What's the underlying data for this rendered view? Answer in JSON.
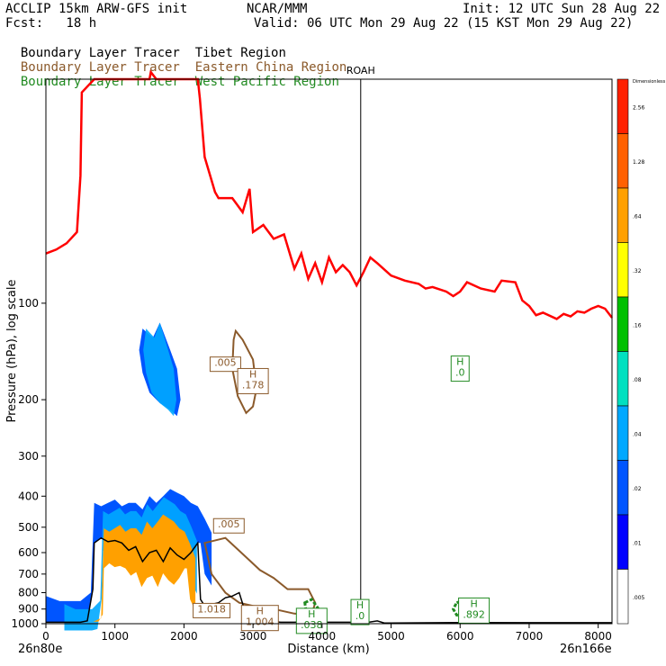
{
  "header": {
    "line1_left": "ACCLIP 15km ARW-GFS init",
    "line1_mid": "NCAR/MMM",
    "line1_right": "Init: 12 UTC Sun 28 Aug 22",
    "line2_left": "Fcst:   18 h",
    "line2_right": "Valid: 06 UTC Mon 29 Aug 22 (15 KST Mon 29 Aug 22)",
    "legend": [
      {
        "prefix": "Boundary Layer Tracer",
        "region": "Tibet Region",
        "color": "#000000"
      },
      {
        "prefix": "Boundary Layer Tracer",
        "region": "Eastern China Region",
        "color": "#8B5A2B"
      },
      {
        "prefix": "Boundary Layer Tracer",
        "region": "West Pacific Region",
        "color": "#228B22"
      }
    ]
  },
  "chart_data": {
    "type": "cross-section",
    "ylabel": "Pressure (hPa), log scale",
    "xlabel": "Distance (km)",
    "xlim": [
      0,
      8200
    ],
    "ylim": [
      1000,
      20
    ],
    "log_y": true,
    "xticks": [
      0,
      1000,
      2000,
      3000,
      4000,
      5000,
      6000,
      7000,
      8000
    ],
    "yticks": [
      100,
      200,
      300,
      400,
      500,
      600,
      700,
      800,
      900,
      1000
    ],
    "x_start_label": "26n80e",
    "x_end_label": "26n166e",
    "marker": {
      "label": "ROAH",
      "x": 4560
    },
    "colorbar": {
      "top_label": "Dimensionless",
      "levels": [
        ".005",
        ".01",
        ".02",
        ".04",
        ".08",
        ".16",
        ".32",
        ".64",
        "1.28",
        "2.56"
      ],
      "colors": [
        "#ffffff",
        "#0000ff",
        "#0055ff",
        "#00a8ff",
        "#00e0c0",
        "#00c000",
        "#ffff00",
        "#ffa000",
        "#ff6000",
        "#ff2000"
      ]
    },
    "tropopause": {
      "color": "#ff0000",
      "x": [
        0,
        150,
        300,
        450,
        500,
        520,
        700,
        1000,
        1300,
        1500,
        1520,
        1600,
        1800,
        2200,
        2230,
        2300,
        2450,
        2500,
        2700,
        2850,
        2950,
        3000,
        3150,
        3300,
        3450,
        3550,
        3600,
        3700,
        3800,
        3900,
        4000,
        4100,
        4200,
        4300,
        4400,
        4500,
        4600,
        4700,
        4800,
        5000,
        5200,
        5400,
        5500,
        5600,
        5800,
        5900,
        6000,
        6100,
        6300,
        6500,
        6600,
        6800,
        6900,
        7000,
        7100,
        7200,
        7400,
        7500,
        7600,
        7700,
        7800,
        7900,
        8000,
        8100,
        8200
      ],
      "p": [
        70,
        68,
        65,
        60,
        40,
        22,
        20,
        20,
        20,
        20,
        19,
        20,
        20,
        20,
        23,
        35,
        45,
        47,
        47,
        52,
        44,
        60,
        57,
        63,
        61,
        72,
        78,
        70,
        84,
        75,
        86,
        72,
        80,
        76,
        80,
        88,
        80,
        72,
        75,
        82,
        85,
        87,
        90,
        89,
        92,
        95,
        92,
        86,
        90,
        92,
        85,
        86,
        98,
        102,
        109,
        107,
        112,
        108,
        110,
        106,
        107,
        104,
        102,
        104,
        111
      ]
    },
    "terrain": {
      "color": "#000000",
      "x": [
        0,
        300,
        500,
        600,
        680,
        700,
        800,
        900,
        1000,
        1100,
        1200,
        1300,
        1400,
        1500,
        1600,
        1700,
        1800,
        1900,
        2000,
        2100,
        2200,
        2240,
        2300,
        2400,
        2500,
        2600,
        2700,
        2800,
        2900,
        3000,
        3200,
        3400,
        3600,
        3800,
        4000,
        4200,
        4400,
        4600,
        4800,
        4900,
        5000,
        6000,
        7000,
        8000,
        8200
      ],
      "p": [
        990,
        990,
        990,
        980,
        780,
        560,
        540,
        555,
        550,
        560,
        590,
        575,
        640,
        600,
        590,
        640,
        580,
        610,
        630,
        600,
        560,
        840,
        880,
        870,
        860,
        830,
        820,
        800,
        940,
        960,
        980,
        990,
        990,
        985,
        990,
        990,
        990,
        995,
        980,
        995,
        995,
        992,
        993,
        993,
        993
      ]
    },
    "tibet_shading": [
      {
        "label": "boundary-layer plume",
        "x": [
          0,
          200,
          500,
          650,
          700,
          800,
          900,
          1000,
          1100,
          1200,
          1300,
          1400,
          1500,
          1600,
          1700,
          1800,
          1900,
          2000,
          2100,
          2200,
          2300,
          2400,
          2400,
          2300,
          2240,
          2200,
          2100,
          2000,
          1900,
          1800,
          1700,
          1600,
          1500,
          1400,
          1300,
          1200,
          1100,
          1000,
          900,
          800,
          700,
          680,
          600,
          500,
          300,
          0
        ],
        "p": [
          820,
          850,
          850,
          800,
          420,
          430,
          420,
          410,
          430,
          420,
          420,
          440,
          400,
          420,
          400,
          380,
          390,
          400,
          420,
          430,
          470,
          520,
          760,
          700,
          560,
          560,
          600,
          630,
          610,
          580,
          640,
          590,
          600,
          640,
          575,
          590,
          560,
          550,
          555,
          540,
          560,
          780,
          980,
          990,
          990,
          990
        ]
      },
      {
        "label": "upper plume",
        "x": [
          1400,
          1550,
          1650,
          1800,
          1900,
          1950,
          1900,
          1800,
          1650,
          1500,
          1400,
          1350
        ],
        "p": [
          120,
          128,
          115,
          140,
          160,
          200,
          225,
          215,
          205,
          190,
          165,
          140
        ]
      }
    ],
    "east_china_contours": [
      {
        "x": [
          2750,
          2850,
          3000,
          3050,
          3000,
          2900,
          2780,
          2700,
          2720
        ],
        "p": [
          122,
          130,
          150,
          185,
          210,
          220,
          195,
          160,
          130
        ]
      },
      {
        "x": [
          2300,
          2600,
          2900,
          3100,
          3300,
          3500,
          3800,
          3900,
          3850,
          3600,
          3300,
          3000,
          2800,
          2600,
          2400
        ],
        "p": [
          560,
          540,
          620,
          680,
          720,
          780,
          780,
          860,
          940,
          930,
          900,
          880,
          860,
          800,
          700
        ]
      }
    ],
    "west_pacific_contours": [
      {
        "x": [
          5950,
          6100,
          6300,
          6400,
          6350,
          6150,
          5950,
          5900
        ],
        "p": [
          860,
          840,
          850,
          900,
          950,
          960,
          940,
          900
        ]
      },
      {
        "x": [
          3750,
          3850,
          3950,
          3900,
          3780
        ],
        "p": [
          860,
          840,
          900,
          960,
          950
        ]
      }
    ],
    "boxes": [
      {
        "text": ".005",
        "x": 2600,
        "p": 155,
        "color": "#8B5A2B"
      },
      {
        "text": "H|.178",
        "x": 3000,
        "p": 175,
        "color": "#8B5A2B"
      },
      {
        "text": "H|.0",
        "x": 6000,
        "p": 160,
        "color": "#228B22"
      },
      {
        "text": ".005",
        "x": 2650,
        "p": 495,
        "color": "#8B5A2B"
      },
      {
        "text": "1.018",
        "x": 2400,
        "p": 910,
        "color": "#8B5A2B"
      },
      {
        "text": "H|1.004",
        "x": 3100,
        "p": 960,
        "color": "#8B5A2B"
      },
      {
        "text": "H|.0",
        "x": 4550,
        "p": 920,
        "color": "#228B22"
      },
      {
        "text": "H|.038",
        "x": 3850,
        "p": 980,
        "color": "#228B22"
      },
      {
        "text": "H|.892",
        "x": 6200,
        "p": 910,
        "color": "#228B22"
      }
    ]
  }
}
